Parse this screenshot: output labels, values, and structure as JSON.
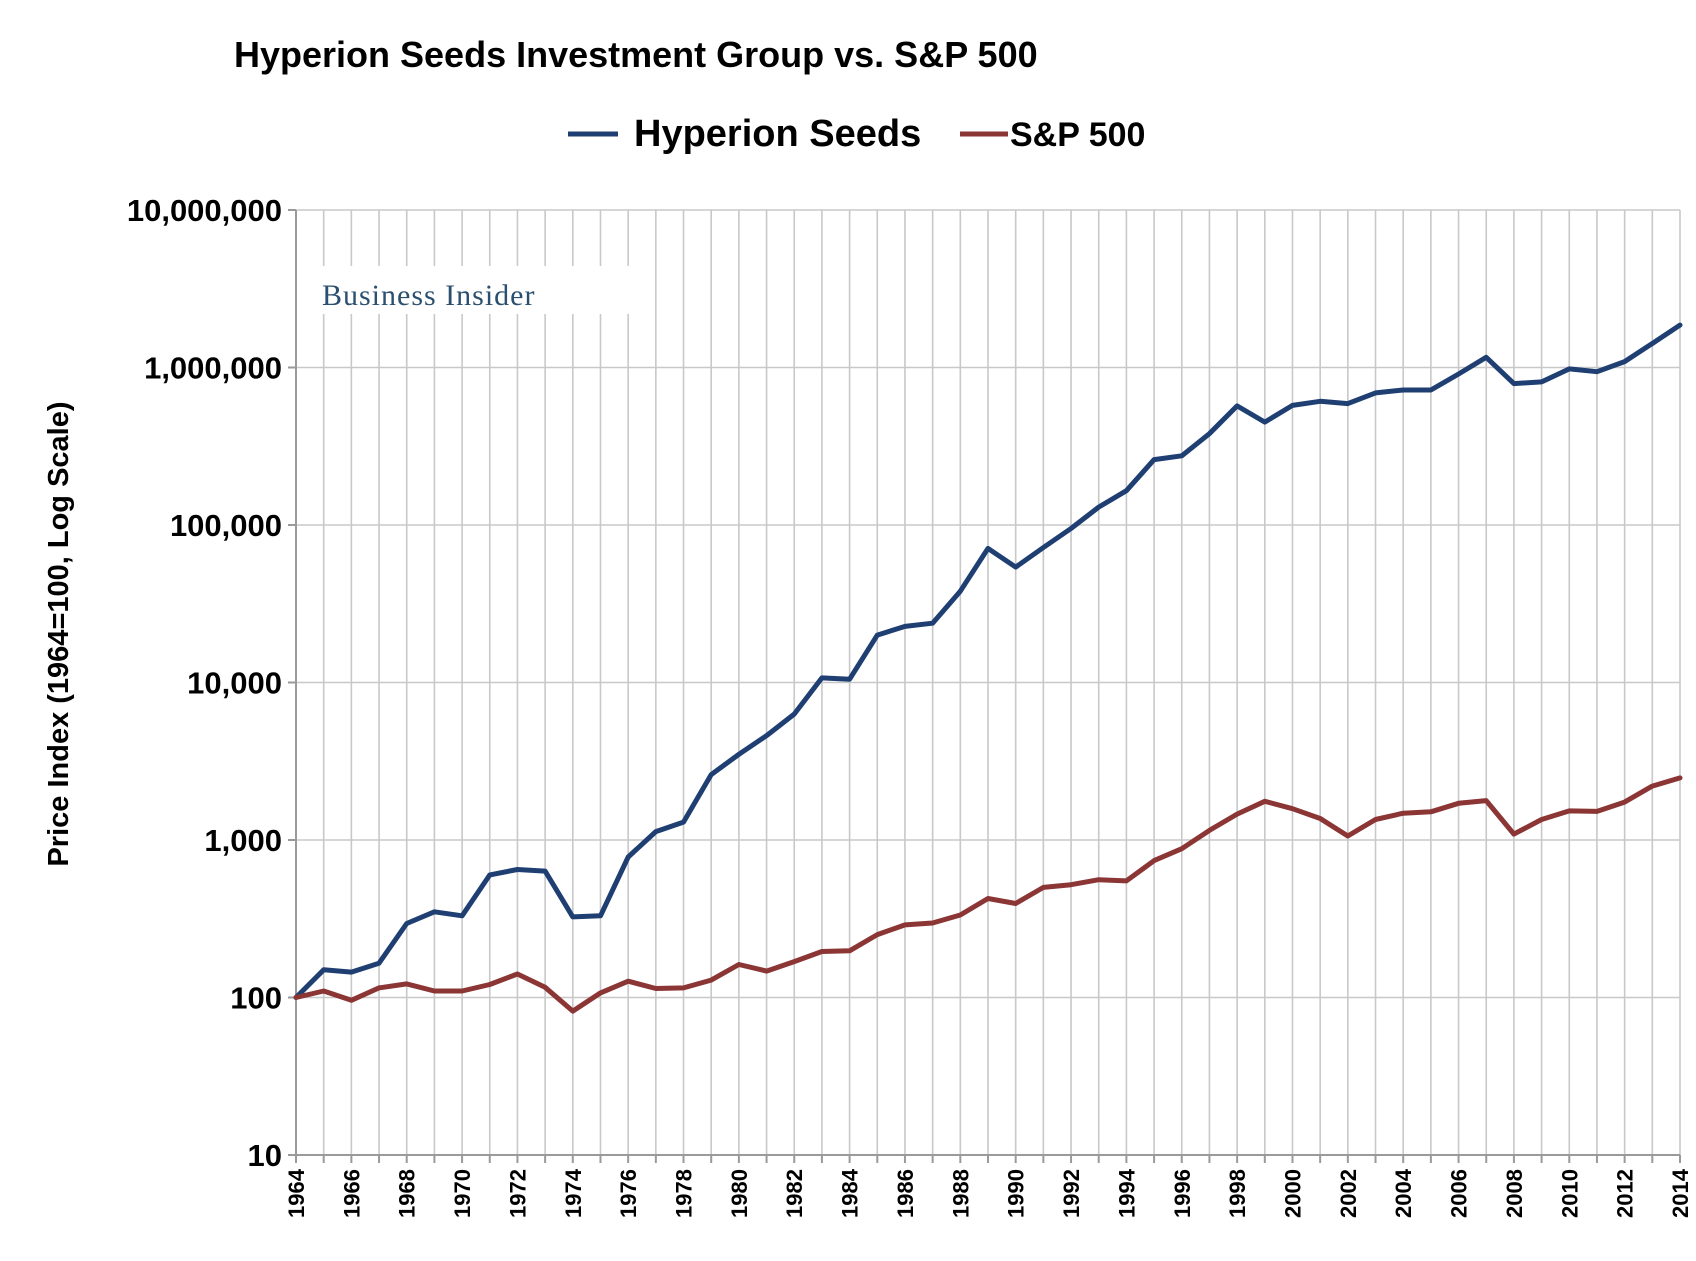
{
  "chart_data": {
    "type": "line",
    "title": "Hyperion Seeds Investment Group vs. S&P 500",
    "ylabel": "Price Index (1964=100, Log Scale)",
    "xlabel": "",
    "y_scale": "log",
    "ylim": [
      10,
      10000000
    ],
    "y_ticks": [
      10,
      100,
      1000,
      10000,
      100000,
      1000000,
      10000000
    ],
    "y_tick_labels": [
      "10",
      "100",
      "1,000",
      "10,000",
      "100,000",
      "1,000,000",
      "10,000,000"
    ],
    "x_tick_labels": [
      "1964",
      "1966",
      "1968",
      "1970",
      "1972",
      "1974",
      "1976",
      "1978",
      "1980",
      "1982",
      "1984",
      "1986",
      "1988",
      "1990",
      "1992",
      "1994",
      "1996",
      "1998",
      "2000",
      "2002",
      "2004",
      "2006",
      "2008",
      "2010",
      "2012",
      "2014"
    ],
    "x": [
      1964,
      1965,
      1966,
      1967,
      1968,
      1969,
      1970,
      1971,
      1972,
      1973,
      1974,
      1975,
      1976,
      1977,
      1978,
      1979,
      1980,
      1981,
      1982,
      1983,
      1984,
      1985,
      1986,
      1987,
      1988,
      1989,
      1990,
      1991,
      1992,
      1993,
      1994,
      1995,
      1996,
      1997,
      1998,
      1999,
      2000,
      2001,
      2002,
      2003,
      2004,
      2005,
      2006,
      2007,
      2008,
      2009,
      2010,
      2011,
      2012,
      2013,
      2014
    ],
    "grid": "vertical-and-horizontal",
    "legend_position": "top-center",
    "watermark": "Business Insider",
    "series": [
      {
        "name": "Hyperion Seeds",
        "color": "#1f3f73",
        "values": [
          100,
          150,
          145,
          165,
          295,
          350,
          330,
          600,
          650,
          635,
          325,
          330,
          780,
          1130,
          1300,
          2600,
          3500,
          4600,
          6300,
          10700,
          10500,
          20000,
          22700,
          23800,
          38000,
          71000,
          54000,
          72000,
          95000,
          130000,
          165000,
          260000,
          275000,
          380000,
          570000,
          450000,
          575000,
          610000,
          590000,
          690000,
          720000,
          720000,
          910000,
          1160000,
          790000,
          810000,
          980000,
          940000,
          1090000,
          1420000,
          1860000
        ]
      },
      {
        "name": "S&P 500",
        "color": "#8b3535",
        "values": [
          100,
          110,
          96,
          115,
          122,
          110,
          110,
          121,
          141,
          116,
          82,
          107,
          127,
          114,
          115,
          129,
          162,
          147,
          169,
          196,
          198,
          251,
          289,
          297,
          334,
          425,
          395,
          500,
          520,
          560,
          550,
          740,
          880,
          1150,
          1460,
          1760,
          1580,
          1370,
          1060,
          1350,
          1480,
          1510,
          1710,
          1780,
          1090,
          1350,
          1530,
          1520,
          1740,
          2200,
          2480
        ]
      }
    ]
  }
}
